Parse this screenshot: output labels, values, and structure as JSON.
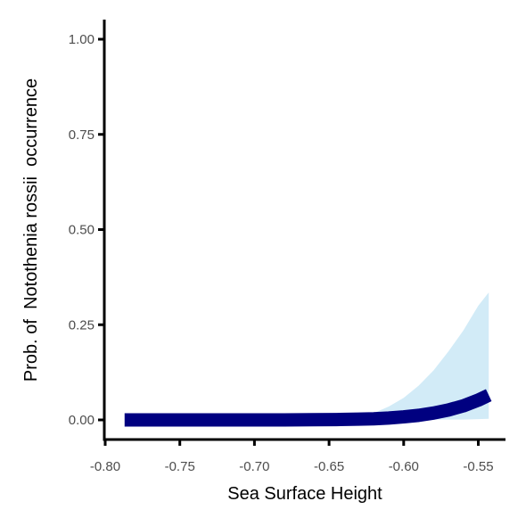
{
  "chart_data": {
    "type": "line",
    "xlabel": "Sea Surface Height",
    "ylabel": "Prob. of  Notothenia rossii  occurrence",
    "xlim": [
      -0.8,
      -0.53
    ],
    "ylim": [
      -0.05,
      1.05
    ],
    "x_ticks": [
      -0.8,
      -0.75,
      -0.7,
      -0.65,
      -0.6,
      -0.55
    ],
    "x_tick_labels": [
      "-0.80",
      "-0.75",
      "-0.70",
      "-0.65",
      "-0.60",
      "-0.55"
    ],
    "y_ticks": [
      0.0,
      0.25,
      0.5,
      0.75,
      1.0
    ],
    "y_tick_labels": [
      "0.00",
      "0.25",
      "0.50",
      "0.75",
      "1.00"
    ],
    "grid": false,
    "legend": "none",
    "line_color": "#000080",
    "band_color": "#d2ebf7",
    "axis_color": "#000000",
    "series": [
      {
        "x": [
          -0.787,
          -0.76,
          -0.73,
          -0.7,
          -0.68,
          -0.66,
          -0.645,
          -0.63,
          -0.62,
          -0.61,
          -0.6,
          -0.59,
          -0.58,
          -0.57,
          -0.56,
          -0.55,
          -0.543
        ],
        "y": [
          0.0,
          0.0,
          0.0,
          0.0,
          0.0,
          0.0005,
          0.001,
          0.002,
          0.003,
          0.005,
          0.008,
          0.012,
          0.018,
          0.026,
          0.037,
          0.052,
          0.065
        ],
        "lower": [
          0.0,
          0.0,
          0.0,
          0.0,
          0.0,
          0.0,
          0.0,
          0.0,
          0.0,
          0.0005,
          0.001,
          0.001,
          0.001,
          0.001,
          0.001,
          0.002,
          0.003
        ],
        "upper": [
          0.0,
          0.0,
          0.0,
          0.0,
          0.0,
          0.002,
          0.004,
          0.009,
          0.018,
          0.035,
          0.058,
          0.09,
          0.13,
          0.18,
          0.235,
          0.3,
          0.335
        ]
      }
    ]
  }
}
